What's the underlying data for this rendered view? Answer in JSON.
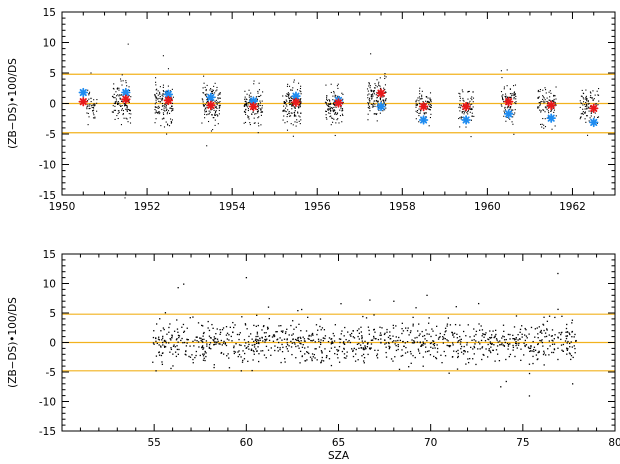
{
  "chart_data": [
    {
      "type": "scatter",
      "ylabel": "(ZB−DS)•100/DS",
      "xlabel": "",
      "xlim": [
        1950,
        1963
      ],
      "ylim": [
        -15,
        15
      ],
      "xticks": [
        1950,
        1952,
        1954,
        1956,
        1958,
        1960,
        1962
      ],
      "yticks": [
        -15,
        -10,
        -5,
        0,
        5,
        10,
        15
      ],
      "hlines": [
        4.8,
        0,
        -4.8
      ],
      "hline_color": "#f2b21e",
      "point_color": "#000000",
      "red_color": "#e8191b",
      "blue_color": "#1f8cf0",
      "grid": false,
      "clusters": [
        {
          "x": 1950.7,
          "spread": 0.12,
          "center": 0.0,
          "n": 45
        },
        {
          "x": 1951.4,
          "spread": 0.22,
          "center": 0.2,
          "n": 130
        },
        {
          "x": 1952.4,
          "spread": 0.22,
          "center": 0.0,
          "n": 140
        },
        {
          "x": 1953.5,
          "spread": 0.22,
          "center": 0.0,
          "n": 130
        },
        {
          "x": 1954.5,
          "spread": 0.22,
          "center": -0.5,
          "n": 120
        },
        {
          "x": 1955.4,
          "spread": 0.22,
          "center": -0.3,
          "n": 150
        },
        {
          "x": 1956.4,
          "spread": 0.22,
          "center": -0.6,
          "n": 120
        },
        {
          "x": 1957.4,
          "spread": 0.22,
          "center": 0.8,
          "n": 140
        },
        {
          "x": 1958.5,
          "spread": 0.18,
          "center": -0.5,
          "n": 80
        },
        {
          "x": 1959.5,
          "spread": 0.18,
          "center": -0.6,
          "n": 80
        },
        {
          "x": 1960.5,
          "spread": 0.18,
          "center": 0.5,
          "n": 90
        },
        {
          "x": 1961.4,
          "spread": 0.22,
          "center": -0.2,
          "n": 100
        },
        {
          "x": 1962.4,
          "spread": 0.22,
          "center": -0.5,
          "n": 90
        }
      ],
      "red_points": [
        [
          1950.5,
          0.3
        ],
        [
          1951.5,
          0.7
        ],
        [
          1952.5,
          0.5
        ],
        [
          1953.5,
          -0.3
        ],
        [
          1954.5,
          -0.5
        ],
        [
          1955.5,
          0.2
        ],
        [
          1956.5,
          0.1
        ],
        [
          1957.5,
          1.7
        ],
        [
          1958.5,
          -0.5
        ],
        [
          1959.5,
          -0.5
        ],
        [
          1960.5,
          0.3
        ],
        [
          1961.5,
          -0.3
        ],
        [
          1962.5,
          -0.8
        ]
      ],
      "blue_points": [
        [
          1950.5,
          1.8
        ],
        [
          1951.5,
          1.8
        ],
        [
          1952.5,
          1.5
        ],
        [
          1953.5,
          1.0
        ],
        [
          1954.5,
          0.4
        ],
        [
          1955.5,
          1.2
        ],
        [
          1956.5,
          0.5
        ],
        [
          1957.5,
          -0.5
        ],
        [
          1958.5,
          -2.7
        ],
        [
          1959.5,
          -2.7
        ],
        [
          1960.5,
          -1.7
        ],
        [
          1961.5,
          -2.4
        ],
        [
          1962.5,
          -3.1
        ]
      ]
    },
    {
      "type": "scatter",
      "ylabel": "(ZB−DS)•100/DS",
      "xlabel": "SZA",
      "xlim": [
        50,
        80
      ],
      "ylim": [
        -15,
        15
      ],
      "xticks": [
        55,
        60,
        65,
        70,
        75,
        80
      ],
      "yticks": [
        -15,
        -10,
        -5,
        0,
        5,
        10,
        15
      ],
      "hlines": [
        4.8,
        0,
        -4.8
      ],
      "hline_color": "#f2b21e",
      "point_color": "#000000",
      "grid": false,
      "x_range_of_points": [
        54.9,
        77.9
      ],
      "n_points": 1100,
      "outliers": [
        [
          56.3,
          9.3
        ],
        [
          56.6,
          9.9
        ],
        [
          60.0,
          11.0
        ],
        [
          61.2,
          6.0
        ],
        [
          68.0,
          7.0
        ],
        [
          69.8,
          8.0
        ],
        [
          76.9,
          11.7
        ],
        [
          73.8,
          -7.5
        ],
        [
          74.1,
          -6.6
        ],
        [
          77.7,
          -7.0
        ],
        [
          71.0,
          -5.2
        ],
        [
          55.1,
          -4.8
        ],
        [
          63.0,
          5.6
        ],
        [
          66.7,
          7.2
        ],
        [
          72.6,
          6.6
        ]
      ]
    }
  ]
}
